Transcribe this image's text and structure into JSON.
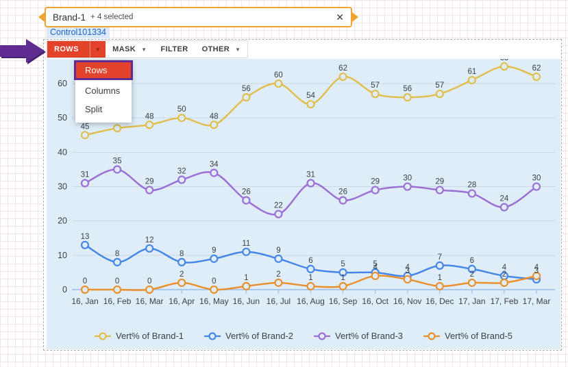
{
  "filter_input": {
    "value": "Brand-1",
    "suffix": "+ 4 selected",
    "close_glyph": "✕"
  },
  "control_label": "Control101334",
  "toolbar": {
    "items": [
      {
        "label": "ROWS",
        "caret": true,
        "active": true
      },
      {
        "label": "MASK",
        "caret": true,
        "active": false
      },
      {
        "label": "FILTER",
        "caret": false,
        "active": false
      },
      {
        "label": "OTHER",
        "caret": true,
        "active": false
      }
    ],
    "caret_glyph": "▼"
  },
  "dropdown": {
    "items": [
      {
        "label": "Rows",
        "selected": true
      },
      {
        "label": "Columns",
        "selected": false
      },
      {
        "label": "Split",
        "selected": false
      }
    ]
  },
  "chart_data": {
    "type": "line",
    "x": [
      "16, Jan",
      "16, Feb",
      "16, Mar",
      "16, Apr",
      "16, May",
      "16, Jun",
      "16, Jul",
      "16, Aug",
      "16, Sep",
      "16, Oct",
      "16, Nov",
      "16, Dec",
      "17, Jan",
      "17, Feb",
      "17, Mar"
    ],
    "series": [
      {
        "name": "Vert% of Brand-1",
        "color": "#e0be4f",
        "values": [
          45,
          47,
          48,
          50,
          48,
          56,
          60,
          54,
          62,
          57,
          56,
          57,
          61,
          65,
          62
        ]
      },
      {
        "name": "Vert% of Brand-2",
        "color": "#4686e8",
        "values": [
          13,
          8,
          12,
          8,
          9,
          11,
          9,
          6,
          5,
          5,
          4,
          7,
          6,
          4,
          3
        ]
      },
      {
        "name": "Vert% of Brand-3",
        "color": "#9b6fd4",
        "values": [
          31,
          35,
          29,
          32,
          34,
          26,
          22,
          31,
          26,
          29,
          30,
          29,
          28,
          24,
          30
        ]
      },
      {
        "name": "Vert% of Brand-5",
        "color": "#e8912e",
        "values": [
          0,
          0,
          0,
          2,
          0,
          1,
          2,
          1,
          1,
          4,
          3,
          1,
          2,
          2,
          4
        ]
      }
    ],
    "yticks": [
      0,
      10,
      20,
      30,
      40,
      50,
      60
    ],
    "ylim": [
      0,
      66
    ],
    "grid": true,
    "point_labels": true,
    "legend_position": "bottom"
  },
  "colors": {
    "accent_red": "#e2432a",
    "annotation_purple": "#5f2d91",
    "input_border_orange": "#f0a332",
    "chart_background": "#deedf7",
    "gridline": "#c9d8e4",
    "axis_line": "#a9c7e8",
    "label_text": "#3d4043",
    "control_label_blue": "#1865c8"
  }
}
